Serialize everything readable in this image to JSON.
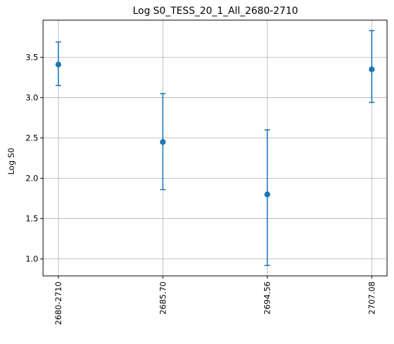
{
  "chart_data": {
    "type": "scatter",
    "title": "Log S0_TESS_20_1_All_2680-2710",
    "xlabel": "",
    "ylabel": "Log S0",
    "categories": [
      "2680-2710",
      "2685.70",
      "2694.56",
      "2707.08"
    ],
    "values": [
      3.41,
      2.45,
      1.8,
      3.35
    ],
    "error_low": [
      3.15,
      1.86,
      0.92,
      2.94
    ],
    "error_high": [
      3.69,
      3.05,
      2.6,
      3.83
    ],
    "yticks": [
      "1.0",
      "1.5",
      "2.0",
      "2.5",
      "3.0",
      "3.5"
    ],
    "ylim": [
      0.79,
      3.96
    ],
    "grid": true,
    "legend": "none",
    "colors": {
      "series": "#1f77b4",
      "grid": "#b0b0b0",
      "axis": "#000000"
    }
  }
}
